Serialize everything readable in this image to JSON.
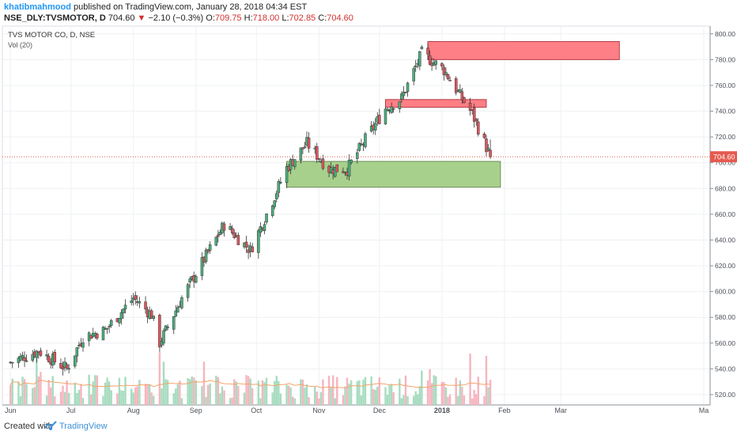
{
  "header": {
    "author": "khatibmahmood",
    "published": "published on TradingView.com, January 28, 2018 04:34 EST",
    "symbol": "NSE_DLY:TVSMOTOR, D",
    "last": "704.60",
    "change": "−2.10 (−0.3%)",
    "o_label": "O:",
    "o_value": "709.75",
    "h_label": "H:",
    "h_value": "718.00",
    "l_label": "L:",
    "l_value": "702.85",
    "c_label": "C:",
    "c_value": "704.60"
  },
  "footer": {
    "created": "Created with",
    "brand": "TradingView"
  },
  "colors": {
    "up": "#4caf7d",
    "down": "#e0565e",
    "vol_up": "#a7dcc0",
    "vol_down": "#f6b5bf",
    "zone_green": "#a8d08d",
    "zone_red": "#ff7f86",
    "price_line": "#e55a4f",
    "vol_ma": "#f5a46b"
  },
  "chart_data": {
    "type": "candlestick",
    "title": "TVS MOTOR CO, D, NSE",
    "indicator": "Vol (20)",
    "y_ticks": [
      "520.00",
      "540.00",
      "560.00",
      "580.00",
      "600.00",
      "620.00",
      "640.00",
      "660.00",
      "680.00",
      "700.00",
      "720.00",
      "740.00",
      "760.00",
      "780.00",
      "800.00"
    ],
    "ylim": [
      512,
      806
    ],
    "x_ticks": [
      "Jun",
      "Jul",
      "Aug",
      "Sep",
      "Oct",
      "Nov",
      "Dec",
      "2018",
      "Feb",
      "Mar",
      "Ma"
    ],
    "last_price_label": "704.60",
    "zones": [
      {
        "color": "green",
        "x_start": "2017-10-16",
        "x_end": "2018-01-30",
        "y_low": 681,
        "y_high": 701
      },
      {
        "color": "red",
        "x_start": "2017-12-04",
        "x_end": "2018-01-23",
        "y_low": 743,
        "y_high": 749
      },
      {
        "color": "red",
        "x_start": "2017-12-25",
        "x_end": "2018-03-30",
        "y_low": 780,
        "y_high": 794
      }
    ],
    "close_series": [
      {
        "date": "2017-06-01",
        "close": 545
      },
      {
        "date": "2017-06-15",
        "close": 554
      },
      {
        "date": "2017-06-29",
        "close": 540
      },
      {
        "date": "2017-07-07",
        "close": 565
      },
      {
        "date": "2017-07-18",
        "close": 570
      },
      {
        "date": "2017-08-01",
        "close": 595
      },
      {
        "date": "2017-08-10",
        "close": 582
      },
      {
        "date": "2017-08-14",
        "close": 560
      },
      {
        "date": "2017-08-25",
        "close": 595
      },
      {
        "date": "2017-09-05",
        "close": 625
      },
      {
        "date": "2017-09-15",
        "close": 652
      },
      {
        "date": "2017-09-28",
        "close": 632
      },
      {
        "date": "2017-10-06",
        "close": 660
      },
      {
        "date": "2017-10-16",
        "close": 696
      },
      {
        "date": "2017-10-26",
        "close": 715
      },
      {
        "date": "2017-11-06",
        "close": 695
      },
      {
        "date": "2017-11-15",
        "close": 695
      },
      {
        "date": "2017-11-24",
        "close": 718
      },
      {
        "date": "2017-12-04",
        "close": 742
      },
      {
        "date": "2017-12-12",
        "close": 750
      },
      {
        "date": "2017-12-22",
        "close": 785
      },
      {
        "date": "2018-01-02",
        "close": 772
      },
      {
        "date": "2018-01-10",
        "close": 752
      },
      {
        "date": "2018-01-16",
        "close": 738
      },
      {
        "date": "2018-01-25",
        "close": 704.6
      }
    ]
  }
}
